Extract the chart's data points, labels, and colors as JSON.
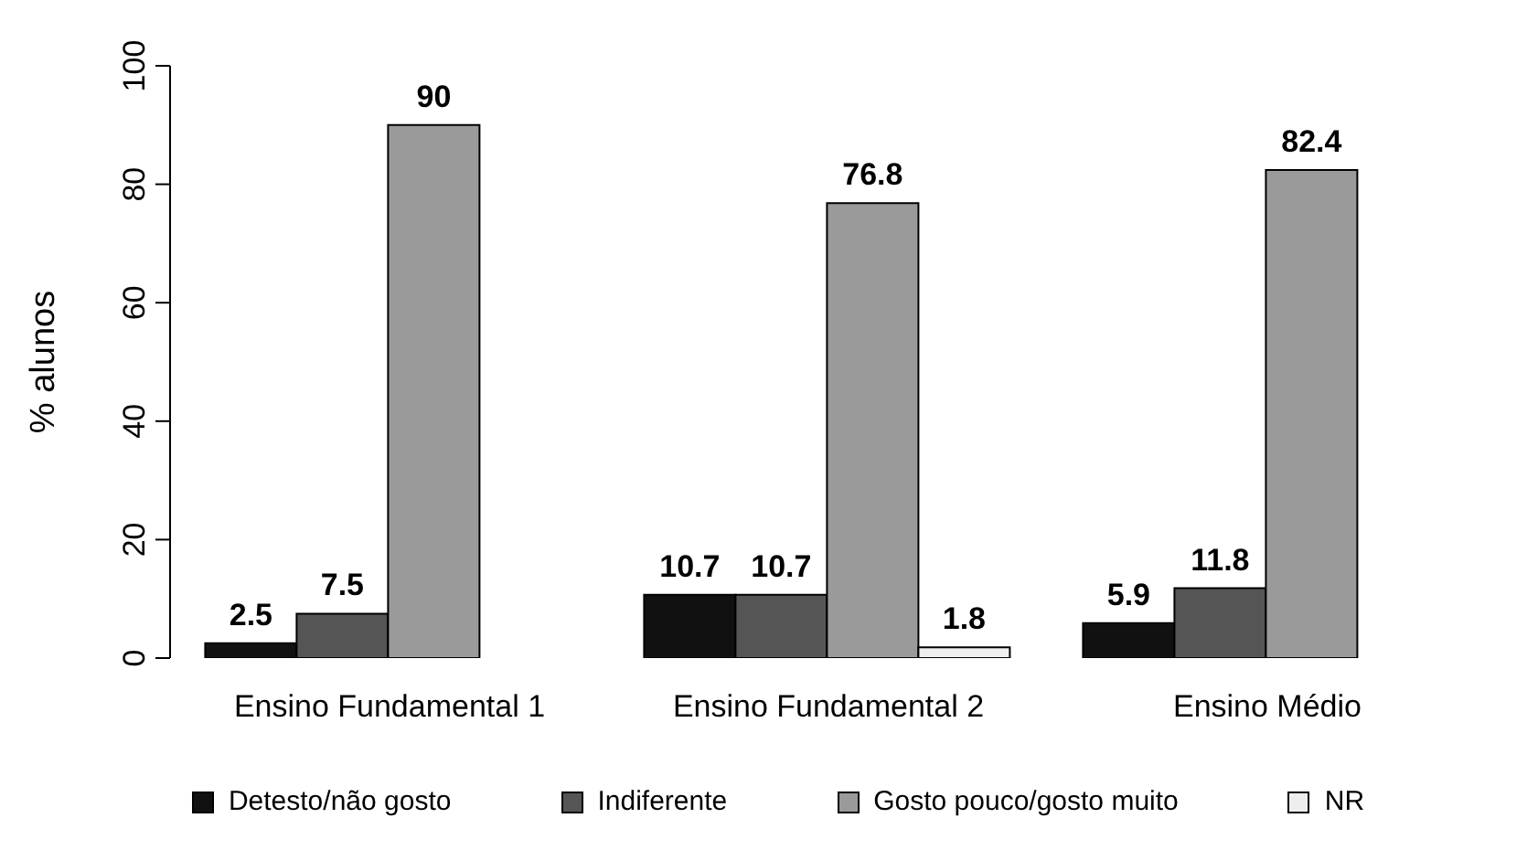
{
  "chart_data": {
    "type": "bar",
    "ylabel": "% alunos",
    "categories": [
      "Ensino Fundamental 1",
      "Ensino Fundamental 2",
      "Ensino Médio"
    ],
    "series": [
      {
        "name": "Detesto/não gosto",
        "color": "#111111",
        "values": [
          2.5,
          10.7,
          5.9
        ]
      },
      {
        "name": "Indiferente",
        "color": "#555555",
        "values": [
          7.5,
          10.7,
          11.8
        ]
      },
      {
        "name": "Gosto pouco/gosto muito",
        "color": "#9a9a9a",
        "values": [
          90,
          76.8,
          82.4
        ]
      },
      {
        "name": "NR",
        "color": "#eeeeee",
        "values": [
          null,
          1.8,
          null
        ]
      }
    ],
    "ylim": [
      0,
      100
    ],
    "yticks": [
      0,
      20,
      40,
      60,
      80,
      100
    ],
    "grid": false,
    "legend": "bottom",
    "data_labels": true
  }
}
